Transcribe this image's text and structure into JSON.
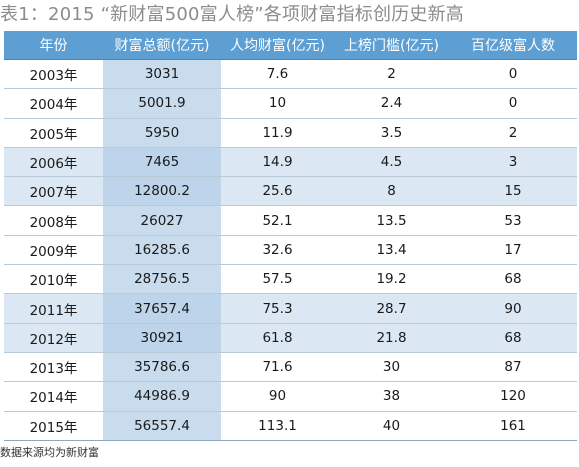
{
  "title": "表1：2015 “新财富500富人榜”各项财富指标创历史新高",
  "table": {
    "headers": [
      "年份",
      "财富总额(亿元)",
      "人均财富(亿元)",
      "上榜门槛(亿元)",
      "百亿级富人数"
    ],
    "rows": [
      [
        "2003年",
        "3031",
        "7.6",
        "2",
        "0"
      ],
      [
        "2004年",
        "5001.9",
        "10",
        "2.4",
        "0"
      ],
      [
        "2005年",
        "5950",
        "11.9",
        "3.5",
        "2"
      ],
      [
        "2006年",
        "7465",
        "14.9",
        "4.5",
        "3"
      ],
      [
        "2007年",
        "12800.2",
        "25.6",
        "8",
        "15"
      ],
      [
        "2008年",
        "26027",
        "52.1",
        "13.5",
        "53"
      ],
      [
        "2009年",
        "16285.6",
        "32.6",
        "13.4",
        "17"
      ],
      [
        "2010年",
        "28756.5",
        "57.5",
        "19.2",
        "68"
      ],
      [
        "2011年",
        "37657.4",
        "75.3",
        "28.7",
        "90"
      ],
      [
        "2012年",
        "30921",
        "61.8",
        "21.8",
        "68"
      ],
      [
        "2013年",
        "35786.6",
        "71.6",
        "30",
        "87"
      ],
      [
        "2014年",
        "44986.9",
        "90",
        "38",
        "120"
      ],
      [
        "2015年",
        "56557.4",
        "113.1",
        "40",
        "161"
      ]
    ],
    "highlighted_rows": [
      "2006年",
      "2007年",
      "2011年",
      "2012年"
    ]
  },
  "source": "数据来源均为新财富",
  "colors": {
    "header_bg": "#5d9fd3",
    "header_text": "#ffffff",
    "total_column_bg": "#c9dcee",
    "highlight_row_bg": "#dbe8f3",
    "title_text": "#8c8c8c"
  }
}
